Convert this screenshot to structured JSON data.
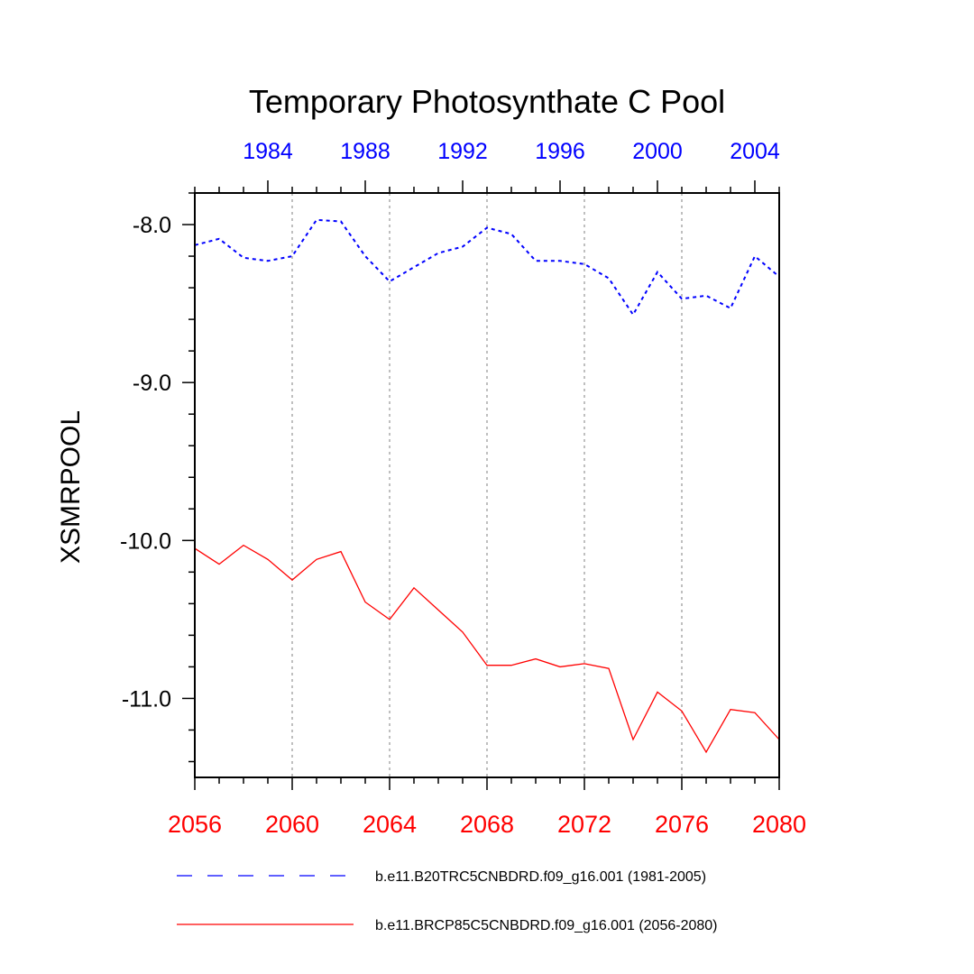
{
  "chart_data": {
    "type": "line",
    "title": "Temporary Photosynthate C Pool",
    "ylabel": "XSMRPOOL",
    "xlabel": "",
    "ylim": [
      -11.5,
      -7.8
    ],
    "y_major_ticks": [
      -8.0,
      -9.0,
      -10.0,
      -11.0
    ],
    "y_tick_labels": [
      "-8.0",
      "-9.0",
      "-10.0",
      "-11.0"
    ],
    "x_bottom": {
      "range": [
        2056,
        2080
      ],
      "ticks": [
        2056,
        2060,
        2064,
        2068,
        2072,
        2076,
        2080
      ],
      "tick_labels": [
        "2056",
        "2060",
        "2064",
        "2068",
        "2072",
        "2076",
        "2080"
      ],
      "color": "#ff0000"
    },
    "x_top": {
      "range": [
        1981,
        2005
      ],
      "ticks": [
        1984,
        1988,
        1992,
        1996,
        2000,
        2004
      ],
      "tick_labels": [
        "1984",
        "1988",
        "1992",
        "1996",
        "2000",
        "2004"
      ],
      "color": "#0000ff"
    },
    "grid": "vertical dotted at major bottom ticks",
    "series": [
      {
        "name": "b.e11.B20TRC5CNBDRD.f09_g16.001 (1981-2005)",
        "color": "#0000ff",
        "dash": "dashed",
        "axis": "top",
        "x": [
          1981,
          1982,
          1983,
          1984,
          1985,
          1986,
          1987,
          1988,
          1989,
          1990,
          1991,
          1992,
          1993,
          1994,
          1995,
          1996,
          1997,
          1998,
          1999,
          2000,
          2001,
          2002,
          2003,
          2004,
          2005
        ],
        "values": [
          -8.13,
          -8.09,
          -8.21,
          -8.23,
          -8.2,
          -7.97,
          -7.98,
          -8.2,
          -8.36,
          -8.27,
          -8.18,
          -8.14,
          -8.02,
          -8.06,
          -8.23,
          -8.23,
          -8.25,
          -8.34,
          -8.57,
          -8.3,
          -8.47,
          -8.45,
          -8.53,
          -8.2,
          -8.33
        ]
      },
      {
        "name": "b.e11.BRCP85C5CNBDRD.f09_g16.001 (2056-2080)",
        "color": "#ff0000",
        "dash": "solid",
        "axis": "bottom",
        "x": [
          2056,
          2057,
          2058,
          2059,
          2060,
          2061,
          2062,
          2063,
          2064,
          2065,
          2066,
          2067,
          2068,
          2069,
          2070,
          2071,
          2072,
          2073,
          2074,
          2075,
          2076,
          2077,
          2078,
          2079,
          2080
        ],
        "values": [
          -10.05,
          -10.15,
          -10.03,
          -10.12,
          -10.25,
          -10.12,
          -10.07,
          -10.39,
          -10.5,
          -10.3,
          -10.44,
          -10.58,
          -10.79,
          -10.79,
          -10.75,
          -10.8,
          -10.78,
          -10.81,
          -11.26,
          -10.96,
          -11.08,
          -11.34,
          -11.07,
          -11.09,
          -11.26
        ]
      }
    ],
    "legend": {
      "placement": "bottom",
      "entries": [
        {
          "label": "b.e11.B20TRC5CNBDRD.f09_g16.001 (1981-2005)",
          "color": "#0000ff",
          "dash": "dashed"
        },
        {
          "label": "b.e11.BRCP85C5CNBDRD.f09_g16.001 (2056-2080)",
          "color": "#ff0000",
          "dash": "solid"
        }
      ]
    }
  }
}
